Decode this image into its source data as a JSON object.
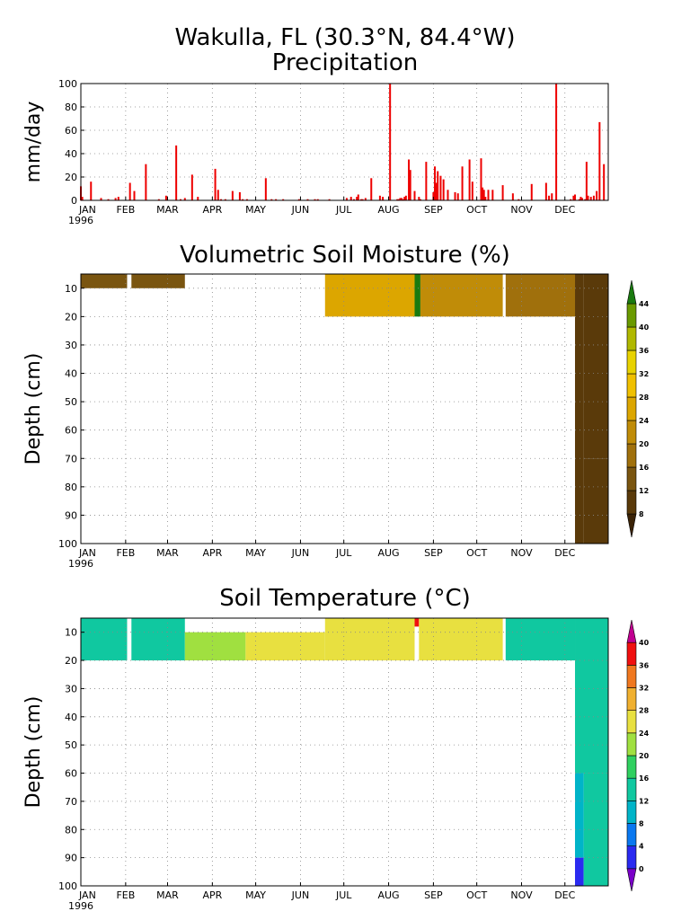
{
  "page": {
    "title_line1": "Wakulla, FL   (30.3°N, 84.4°W)",
    "title_line2": "Precipitation"
  },
  "months": [
    "JAN",
    "FEB",
    "MAR",
    "APR",
    "MAY",
    "JUN",
    "JUL",
    "AUG",
    "SEP",
    "OCT",
    "NOV",
    "DEC"
  ],
  "year_label": "1996",
  "chart_data": [
    {
      "type": "bar",
      "title": "Precipitation",
      "ylabel": "mm/day",
      "xlabel": "",
      "xlim": [
        1,
        366
      ],
      "ylim": [
        0,
        100
      ],
      "yticks": [
        0,
        20,
        40,
        60,
        80,
        100
      ],
      "grid": true,
      "color": "#ee0000",
      "x": [
        1,
        2,
        8,
        15,
        20,
        25,
        27,
        35,
        38,
        46,
        55,
        60,
        67,
        70,
        73,
        78,
        82,
        94,
        96,
        98,
        101,
        106,
        111,
        113,
        116,
        129,
        133,
        136,
        141,
        152,
        158,
        163,
        165,
        173,
        185,
        188,
        190,
        192,
        193,
        195,
        196,
        198,
        202,
        208,
        210,
        215,
        220,
        221,
        222,
        223,
        224,
        225,
        226,
        228,
        229,
        232,
        235,
        236,
        240,
        245,
        246,
        247,
        248,
        250,
        252,
        255,
        260,
        262,
        265,
        270,
        272,
        278,
        279,
        280,
        281,
        283,
        286,
        293,
        300,
        304,
        313,
        323,
        325,
        327,
        330,
        340,
        342,
        346,
        348,
        350,
        352,
        354,
        356,
        358,
        360,
        363
      ],
      "values": [
        12,
        3,
        16,
        2,
        1,
        2,
        3,
        15,
        8,
        31,
        1,
        4,
        47,
        1,
        2,
        22,
        3,
        27,
        9,
        1,
        1,
        8,
        7,
        1,
        1,
        19,
        1,
        1,
        1,
        1,
        1,
        1,
        1,
        1,
        2,
        3,
        1,
        3,
        5,
        1,
        1,
        2,
        19,
        4,
        3,
        100,
        1,
        1,
        2,
        2,
        1,
        3,
        4,
        35,
        26,
        8,
        3,
        1,
        33,
        7,
        29,
        15,
        25,
        21,
        18,
        9,
        7,
        6,
        29,
        35,
        16,
        36,
        11,
        9,
        3,
        9,
        9,
        13,
        6,
        1,
        14,
        15,
        4,
        6,
        100,
        1,
        4,
        1,
        2,
        1,
        4,
        3,
        4,
        8,
        67,
        31
      ],
      "extra_points_x": [
        343,
        347,
        351
      ],
      "extra_points_values": [
        5,
        3,
        33
      ]
    },
    {
      "type": "heatmap",
      "title": "Volumetric Soil Moisture (%)",
      "ylabel": "Depth (cm)",
      "xlabel": "",
      "xlim": [
        1,
        366
      ],
      "ylim": [
        100,
        5
      ],
      "yticks": [
        10,
        20,
        30,
        40,
        50,
        60,
        70,
        80,
        90,
        100
      ],
      "grid": true,
      "colorbar_levels": [
        8,
        12,
        16,
        20,
        24,
        28,
        32,
        36,
        40,
        44
      ],
      "colorbar_colors": [
        "#3a2206",
        "#5a3a0a",
        "#7a5510",
        "#a0700c",
        "#c08c08",
        "#dca600",
        "#f0c000",
        "#e8d200",
        "#b0b800",
        "#6a9a00",
        "#1a7a10"
      ],
      "segments": [
        {
          "x0": 1,
          "x1": 33,
          "d0": 5,
          "d1": 10,
          "value": 12
        },
        {
          "x0": 36,
          "x1": 73,
          "d0": 5,
          "d1": 10,
          "value": 13
        },
        {
          "x0": 170,
          "x1": 232,
          "d0": 5,
          "d1": 20,
          "value": 25
        },
        {
          "x0": 232,
          "x1": 236,
          "d0": 5,
          "d1": 20,
          "value": 44
        },
        {
          "x0": 236,
          "x1": 293,
          "d0": 5,
          "d1": 20,
          "value": 23
        },
        {
          "x0": 295,
          "x1": 343,
          "d0": 5,
          "d1": 20,
          "value": 18
        },
        {
          "x0": 343,
          "x1": 349,
          "d0": 5,
          "d1": 100,
          "value": 8
        },
        {
          "x0": 349,
          "x1": 366,
          "d0": 5,
          "d1": 70,
          "value": 8
        },
        {
          "x0": 349,
          "x1": 366,
          "d0": 70,
          "d1": 100,
          "value": 11
        }
      ]
    },
    {
      "type": "heatmap",
      "title": "Soil Temperature (°C)",
      "ylabel": "Depth (cm)",
      "xlabel": "",
      "xlim": [
        1,
        366
      ],
      "ylim": [
        100,
        5
      ],
      "yticks": [
        10,
        20,
        30,
        40,
        50,
        60,
        70,
        80,
        90,
        100
      ],
      "grid": true,
      "colorbar_levels": [
        0,
        4,
        8,
        12,
        16,
        20,
        24,
        28,
        32,
        36,
        40
      ],
      "colorbar_colors": [
        "#7a00c8",
        "#2a2af0",
        "#0a78f0",
        "#00b4c8",
        "#10c8a0",
        "#30d060",
        "#a0e040",
        "#e8e040",
        "#f0b030",
        "#f07820",
        "#f01010",
        "#c00090"
      ],
      "segments": [
        {
          "x0": 1,
          "x1": 33,
          "d0": 5,
          "d1": 20,
          "value": 12
        },
        {
          "x0": 36,
          "x1": 73,
          "d0": 5,
          "d1": 20,
          "value": 14
        },
        {
          "x0": 73,
          "x1": 115,
          "d0": 10,
          "d1": 20,
          "value": 20
        },
        {
          "x0": 115,
          "x1": 170,
          "d0": 10,
          "d1": 20,
          "value": 25
        },
        {
          "x0": 170,
          "x1": 232,
          "d0": 5,
          "d1": 20,
          "value": 27
        },
        {
          "x0": 232,
          "x1": 235,
          "d0": 5,
          "d1": 8,
          "value": 38
        },
        {
          "x0": 235,
          "x1": 293,
          "d0": 5,
          "d1": 20,
          "value": 26
        },
        {
          "x0": 295,
          "x1": 343,
          "d0": 5,
          "d1": 20,
          "value": 15
        },
        {
          "x0": 343,
          "x1": 366,
          "d0": 5,
          "d1": 60,
          "value": 13
        },
        {
          "x0": 343,
          "x1": 349,
          "d0": 60,
          "d1": 90,
          "value": 9
        },
        {
          "x0": 343,
          "x1": 349,
          "d0": 90,
          "d1": 100,
          "value": 2
        },
        {
          "x0": 349,
          "x1": 366,
          "d0": 60,
          "d1": 100,
          "value": 14
        }
      ]
    }
  ]
}
